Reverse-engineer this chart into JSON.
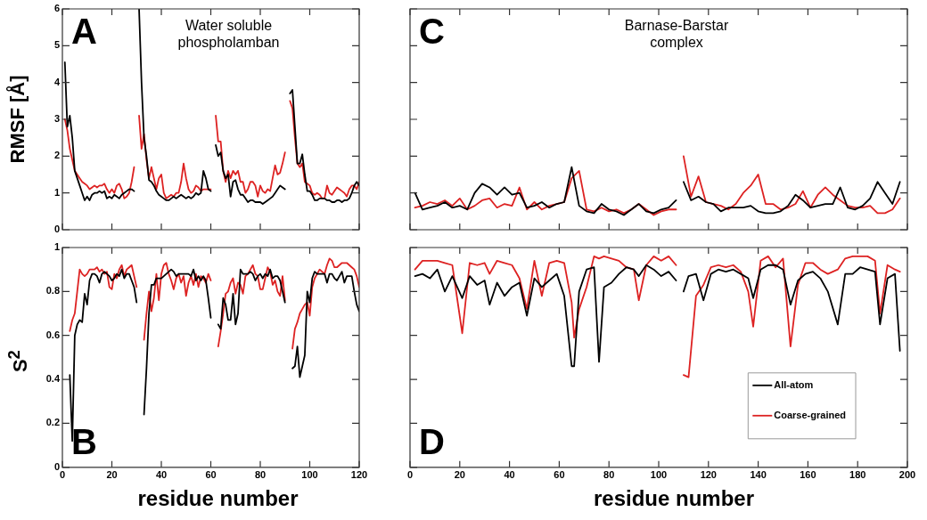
{
  "chart_data": [
    {
      "type": "line",
      "title": "Water soluble phospholamban",
      "ylabel": "RMSF [Å]",
      "annotations": [
        "A"
      ],
      "xlim": [
        0,
        120
      ],
      "xticks": [
        0,
        20,
        40,
        60,
        80,
        100,
        120
      ],
      "ylim": [
        0,
        6
      ],
      "yticks": [
        0,
        1,
        2,
        3,
        4,
        5,
        6
      ],
      "tick_labels": "y",
      "x": [
        1,
        2,
        3,
        4,
        5,
        6,
        7,
        8,
        9,
        10,
        11,
        12,
        13,
        14,
        15,
        16,
        17,
        18,
        19,
        20,
        21,
        22,
        23,
        24,
        25,
        26,
        27,
        28,
        29,
        30,
        31,
        32,
        33,
        34,
        35,
        36,
        37,
        38,
        39,
        40,
        41,
        42,
        43,
        44,
        45,
        46,
        47,
        48,
        49,
        50,
        51,
        52,
        53,
        54,
        55,
        56,
        57,
        58,
        59,
        60,
        61,
        62,
        63,
        64,
        65,
        66,
        67,
        68,
        69,
        70,
        71,
        72,
        73,
        74,
        75,
        76,
        77,
        78,
        79,
        80,
        81,
        82,
        83,
        84,
        85,
        86,
        87,
        88,
        89,
        90,
        91,
        92,
        93,
        94,
        95,
        96,
        97,
        98,
        99,
        100,
        101,
        102,
        103,
        104,
        105,
        106,
        107,
        108,
        109,
        110,
        111,
        112,
        113,
        114,
        115,
        116,
        117,
        118,
        119,
        120
      ],
      "series": [
        {
          "color": "#000000",
          "values": [
            4.55,
            2.8,
            3.1,
            2.5,
            1.6,
            1.4,
            1.2,
            1.0,
            0.8,
            0.9,
            0.8,
            0.95,
            1.0,
            1.0,
            1.05,
            1.0,
            1.05,
            0.85,
            0.9,
            0.85,
            0.95,
            0.9,
            0.85,
            0.95,
            1.0,
            1.05,
            1.1,
            1.1,
            1.05,
            null,
            6.0,
            4.0,
            2.5,
            2.0,
            1.35,
            1.3,
            1.2,
            1.05,
            0.95,
            0.9,
            0.85,
            0.8,
            0.8,
            0.85,
            0.9,
            0.85,
            0.9,
            0.95,
            0.9,
            0.85,
            0.9,
            0.85,
            0.9,
            1.0,
            0.95,
            1.0,
            1.6,
            1.4,
            1.1,
            1.05,
            null,
            2.3,
            2.0,
            2.1,
            1.6,
            1.4,
            1.5,
            0.9,
            1.3,
            1.35,
            1.1,
            0.95,
            0.95,
            0.85,
            0.75,
            0.8,
            0.8,
            0.75,
            0.75,
            0.75,
            0.7,
            0.75,
            0.8,
            0.85,
            0.9,
            1.0,
            1.1,
            1.2,
            1.15,
            1.1,
            null,
            3.7,
            3.8,
            2.8,
            1.8,
            1.8,
            2.05,
            1.5,
            1.05,
            1.05,
            0.95,
            0.8,
            0.8,
            0.85,
            0.85,
            0.85,
            0.8,
            0.8,
            0.75,
            0.75,
            0.8,
            0.8,
            0.75,
            0.8,
            0.8,
            0.85,
            1.0,
            1.2,
            1.3,
            1.2
          ]
        },
        {
          "color": "#dd2222",
          "values": [
            3.0,
            2.7,
            2.2,
            1.9,
            1.6,
            1.5,
            1.4,
            1.3,
            1.25,
            1.2,
            1.1,
            1.15,
            1.2,
            1.15,
            1.2,
            1.2,
            1.25,
            1.1,
            1.0,
            1.1,
            1.0,
            1.2,
            1.25,
            1.1,
            0.85,
            0.9,
            1.0,
            1.3,
            1.7,
            null,
            3.1,
            2.2,
            2.6,
            1.9,
            1.4,
            1.7,
            1.4,
            1.1,
            1.4,
            1.5,
            1.0,
            0.85,
            0.9,
            0.95,
            0.9,
            1.0,
            1.0,
            1.3,
            1.8,
            1.4,
            1.1,
            1.0,
            1.05,
            1.2,
            1.15,
            1.05,
            1.1,
            1.1,
            1.1,
            1.1,
            null,
            3.1,
            2.4,
            2.4,
            1.6,
            1.3,
            1.6,
            1.4,
            1.6,
            1.5,
            1.6,
            1.3,
            1.3,
            1.0,
            1.1,
            1.3,
            1.3,
            1.2,
            0.9,
            1.2,
            1.05,
            1.0,
            1.1,
            1.05,
            1.4,
            1.75,
            1.5,
            1.55,
            1.8,
            2.1,
            null,
            3.5,
            3.3,
            2.5,
            1.8,
            1.7,
            1.8,
            1.3,
            1.25,
            1.2,
            1.0,
            0.95,
            1.0,
            0.95,
            0.85,
            0.85,
            1.2,
            1.0,
            0.95,
            1.05,
            1.15,
            1.1,
            1.05,
            1.0,
            0.9,
            1.1,
            1.2,
            1.2,
            1.1,
            1.3
          ]
        }
      ]
    },
    {
      "type": "line",
      "xlabel": "residue number",
      "ylabel": "S$^{2}$",
      "annotations": [
        "B"
      ],
      "xlim": [
        0,
        120
      ],
      "xticks": [
        0,
        20,
        40,
        60,
        80,
        100,
        120
      ],
      "ylim": [
        0,
        1
      ],
      "yticks": [
        0,
        0.2,
        0.4,
        0.6,
        0.8,
        1
      ],
      "x": [
        3,
        4,
        5,
        6,
        7,
        8,
        9,
        10,
        11,
        12,
        13,
        14,
        15,
        16,
        17,
        18,
        19,
        20,
        21,
        22,
        23,
        24,
        25,
        26,
        27,
        28,
        29,
        30,
        31,
        32,
        33,
        34,
        35,
        36,
        37,
        38,
        39,
        40,
        41,
        42,
        43,
        44,
        45,
        46,
        47,
        48,
        49,
        50,
        51,
        52,
        53,
        54,
        55,
        56,
        57,
        58,
        59,
        60,
        61,
        62,
        63,
        64,
        65,
        66,
        67,
        68,
        69,
        70,
        71,
        72,
        73,
        74,
        75,
        76,
        77,
        78,
        79,
        80,
        81,
        82,
        83,
        84,
        85,
        86,
        87,
        88,
        89,
        90,
        91,
        92,
        93,
        94,
        95,
        96,
        97,
        98,
        99,
        100,
        101,
        102,
        103,
        104,
        105,
        106,
        107,
        108,
        109,
        110,
        111,
        112,
        113,
        114,
        115,
        116,
        117,
        118,
        119,
        120
      ],
      "series": [
        {
          "color": "#000000",
          "values": [
            0.42,
            0.12,
            0.6,
            0.65,
            0.67,
            0.66,
            0.79,
            0.74,
            0.85,
            0.88,
            0.88,
            0.87,
            0.84,
            0.88,
            0.89,
            0.88,
            0.87,
            0.85,
            0.86,
            0.88,
            0.87,
            0.9,
            0.86,
            0.88,
            0.88,
            0.85,
            0.82,
            0.75,
            null,
            null,
            0.24,
            0.45,
            0.7,
            0.83,
            0.83,
            0.86,
            0.86,
            0.86,
            0.87,
            0.88,
            0.89,
            0.9,
            0.89,
            0.87,
            0.88,
            0.88,
            0.88,
            0.88,
            0.88,
            0.87,
            0.9,
            0.85,
            0.87,
            0.85,
            0.87,
            0.85,
            0.77,
            0.68,
            null,
            null,
            0.65,
            0.63,
            0.77,
            0.74,
            0.67,
            0.67,
            0.79,
            0.65,
            0.7,
            0.9,
            0.88,
            0.88,
            0.88,
            0.89,
            0.88,
            0.85,
            0.87,
            0.88,
            0.86,
            0.88,
            0.87,
            0.9,
            0.86,
            0.87,
            0.87,
            0.85,
            0.8,
            0.75,
            null,
            null,
            0.45,
            0.46,
            0.55,
            0.41,
            0.46,
            0.51,
            0.8,
            0.75,
            0.86,
            0.89,
            0.88,
            0.88,
            0.88,
            0.88,
            0.84,
            0.88,
            0.88,
            0.86,
            0.85,
            0.87,
            0.89,
            0.84,
            0.87,
            0.87,
            0.87,
            0.8,
            0.74,
            0.71
          ]
        },
        {
          "color": "#dd2222",
          "values": [
            0.62,
            0.67,
            0.7,
            0.8,
            0.9,
            0.88,
            0.87,
            0.88,
            0.9,
            0.9,
            0.9,
            0.91,
            0.89,
            0.9,
            0.88,
            0.89,
            0.82,
            0.81,
            0.88,
            0.86,
            0.9,
            0.92,
            0.87,
            0.9,
            0.91,
            0.92,
            0.87,
            0.82,
            null,
            null,
            0.58,
            0.7,
            0.8,
            0.71,
            0.77,
            0.88,
            0.76,
            0.88,
            0.92,
            0.93,
            0.88,
            0.85,
            0.81,
            0.86,
            0.88,
            0.84,
            0.87,
            0.78,
            0.84,
            0.87,
            0.83,
            0.88,
            0.82,
            0.87,
            0.86,
            0.84,
            0.88,
            0.85,
            null,
            null,
            0.55,
            0.62,
            0.7,
            0.79,
            0.8,
            0.84,
            0.86,
            0.79,
            0.84,
            0.83,
            0.79,
            0.87,
            0.88,
            0.9,
            0.92,
            0.88,
            0.87,
            0.81,
            0.81,
            0.86,
            0.91,
            0.89,
            0.83,
            0.85,
            0.8,
            0.78,
            0.87,
            0.76,
            null,
            null,
            0.54,
            0.63,
            0.66,
            0.7,
            0.72,
            0.74,
            0.75,
            0.69,
            0.82,
            0.86,
            0.88,
            0.9,
            0.89,
            0.88,
            0.92,
            0.95,
            0.94,
            0.91,
            0.91,
            0.92,
            0.93,
            0.93,
            0.93,
            0.92,
            0.91,
            0.9,
            0.87,
            0.82
          ]
        }
      ]
    },
    {
      "type": "line",
      "title": "Barnase-Barstar complex",
      "annotations": [
        "C"
      ],
      "xlim": [
        0,
        200
      ],
      "xticks": [
        0,
        20,
        40,
        60,
        80,
        100,
        120,
        140,
        160,
        180,
        200
      ],
      "ylim": [
        0,
        6
      ],
      "yticks": [
        0,
        1,
        2,
        3,
        4,
        5,
        6
      ],
      "tick_labels": false,
      "x": [
        2,
        5,
        8,
        11,
        14,
        17,
        20,
        23,
        26,
        29,
        32,
        35,
        38,
        41,
        44,
        47,
        50,
        53,
        56,
        59,
        62,
        65,
        68,
        71,
        74,
        77,
        80,
        83,
        86,
        89,
        92,
        95,
        98,
        101,
        104,
        107,
        109,
        110,
        113,
        116,
        119,
        122,
        125,
        128,
        131,
        134,
        137,
        140,
        143,
        146,
        149,
        152,
        155,
        158,
        161,
        164,
        167,
        170,
        173,
        176,
        179,
        182,
        185,
        188,
        191,
        194,
        197
      ],
      "series": [
        {
          "color": "#000000",
          "values": [
            1.0,
            0.55,
            0.6,
            0.65,
            0.75,
            0.6,
            0.65,
            0.55,
            1.0,
            1.25,
            1.15,
            0.95,
            1.15,
            0.95,
            1.0,
            0.6,
            0.65,
            0.75,
            0.6,
            0.7,
            0.75,
            1.7,
            0.65,
            0.5,
            0.45,
            0.7,
            0.55,
            0.5,
            0.4,
            0.55,
            0.7,
            0.5,
            0.45,
            0.55,
            0.6,
            0.8,
            null,
            1.3,
            0.8,
            0.9,
            0.75,
            0.7,
            0.5,
            0.6,
            0.6,
            0.6,
            0.65,
            0.5,
            0.45,
            0.45,
            0.5,
            0.65,
            0.95,
            0.8,
            0.6,
            0.65,
            0.7,
            0.7,
            1.15,
            0.6,
            0.55,
            0.65,
            0.85,
            1.3,
            1.0,
            0.7,
            1.3
          ]
        },
        {
          "color": "#dd2222",
          "values": [
            0.6,
            0.65,
            0.75,
            0.7,
            0.8,
            0.65,
            0.85,
            0.55,
            0.65,
            0.8,
            0.85,
            0.6,
            0.7,
            0.65,
            1.15,
            0.55,
            0.75,
            0.55,
            0.65,
            0.7,
            0.75,
            1.4,
            1.6,
            0.55,
            0.5,
            0.6,
            0.5,
            0.55,
            0.45,
            0.55,
            0.7,
            0.55,
            0.4,
            0.5,
            0.55,
            0.55,
            null,
            2.0,
            0.9,
            1.45,
            0.75,
            0.7,
            0.65,
            0.55,
            0.7,
            1.0,
            1.2,
            1.5,
            0.7,
            0.7,
            0.55,
            0.6,
            0.7,
            1.05,
            0.6,
            0.95,
            1.15,
            0.95,
            0.8,
            0.65,
            0.6,
            0.6,
            0.65,
            0.45,
            0.45,
            0.55,
            0.85
          ]
        }
      ]
    },
    {
      "type": "line",
      "xlabel": "residue number",
      "annotations": [
        "D"
      ],
      "xlim": [
        0,
        200
      ],
      "xticks": [
        0,
        20,
        40,
        60,
        80,
        100,
        120,
        140,
        160,
        180,
        200
      ],
      "ylim": [
        0,
        1
      ],
      "yticks": [
        0,
        0.2,
        0.4,
        0.6,
        0.8,
        1
      ],
      "tick_labels": "x",
      "legend": "bottom right",
      "x": [
        2,
        5,
        8,
        11,
        14,
        17,
        21,
        24,
        27,
        30,
        32,
        35,
        38,
        41,
        44,
        47,
        50,
        53,
        56,
        59,
        62,
        65,
        66,
        68,
        71,
        74,
        76,
        78,
        81,
        84,
        87,
        90,
        92,
        95,
        98,
        101,
        104,
        107,
        109,
        110,
        112,
        115,
        118,
        121,
        124,
        127,
        130,
        133,
        136,
        138,
        141,
        144,
        147,
        150,
        153,
        156,
        159,
        162,
        165,
        168,
        172,
        175,
        178,
        181,
        184,
        187,
        189,
        192,
        195,
        197
      ],
      "series": [
        {
          "name": "All-atom",
          "color": "#000000",
          "values": [
            0.87,
            0.88,
            0.86,
            0.9,
            0.8,
            0.87,
            0.77,
            0.87,
            0.83,
            0.85,
            0.74,
            0.84,
            0.78,
            0.82,
            0.84,
            0.69,
            0.86,
            0.82,
            0.85,
            0.88,
            0.78,
            0.46,
            0.46,
            0.8,
            0.9,
            0.91,
            0.48,
            0.82,
            0.84,
            0.88,
            0.91,
            0.9,
            0.87,
            0.92,
            0.9,
            0.87,
            0.89,
            0.85,
            null,
            0.8,
            0.87,
            0.88,
            0.76,
            0.88,
            0.9,
            0.89,
            0.9,
            0.88,
            0.86,
            0.77,
            0.9,
            0.92,
            0.92,
            0.9,
            0.74,
            0.85,
            0.88,
            0.89,
            0.86,
            0.8,
            0.65,
            0.88,
            0.88,
            0.91,
            0.9,
            0.89,
            0.65,
            0.86,
            0.88,
            0.53
          ]
        },
        {
          "name": "Coarse-grained",
          "color": "#dd2222",
          "values": [
            0.9,
            0.94,
            0.94,
            0.94,
            0.93,
            0.92,
            0.61,
            0.93,
            0.92,
            0.93,
            0.88,
            0.94,
            0.93,
            0.92,
            0.86,
            0.72,
            0.94,
            0.78,
            0.93,
            0.94,
            0.93,
            0.75,
            0.59,
            0.72,
            0.82,
            0.96,
            0.95,
            0.96,
            0.95,
            0.94,
            0.91,
            0.9,
            0.76,
            0.92,
            0.96,
            0.94,
            0.96,
            0.92,
            null,
            0.42,
            0.41,
            0.78,
            0.83,
            0.91,
            0.92,
            0.91,
            0.92,
            0.89,
            0.8,
            0.64,
            0.94,
            0.96,
            0.91,
            0.95,
            0.55,
            0.83,
            0.93,
            0.93,
            0.9,
            0.88,
            0.9,
            0.95,
            0.96,
            0.96,
            0.96,
            0.94,
            0.7,
            0.92,
            0.9,
            0.89
          ]
        }
      ]
    }
  ]
}
